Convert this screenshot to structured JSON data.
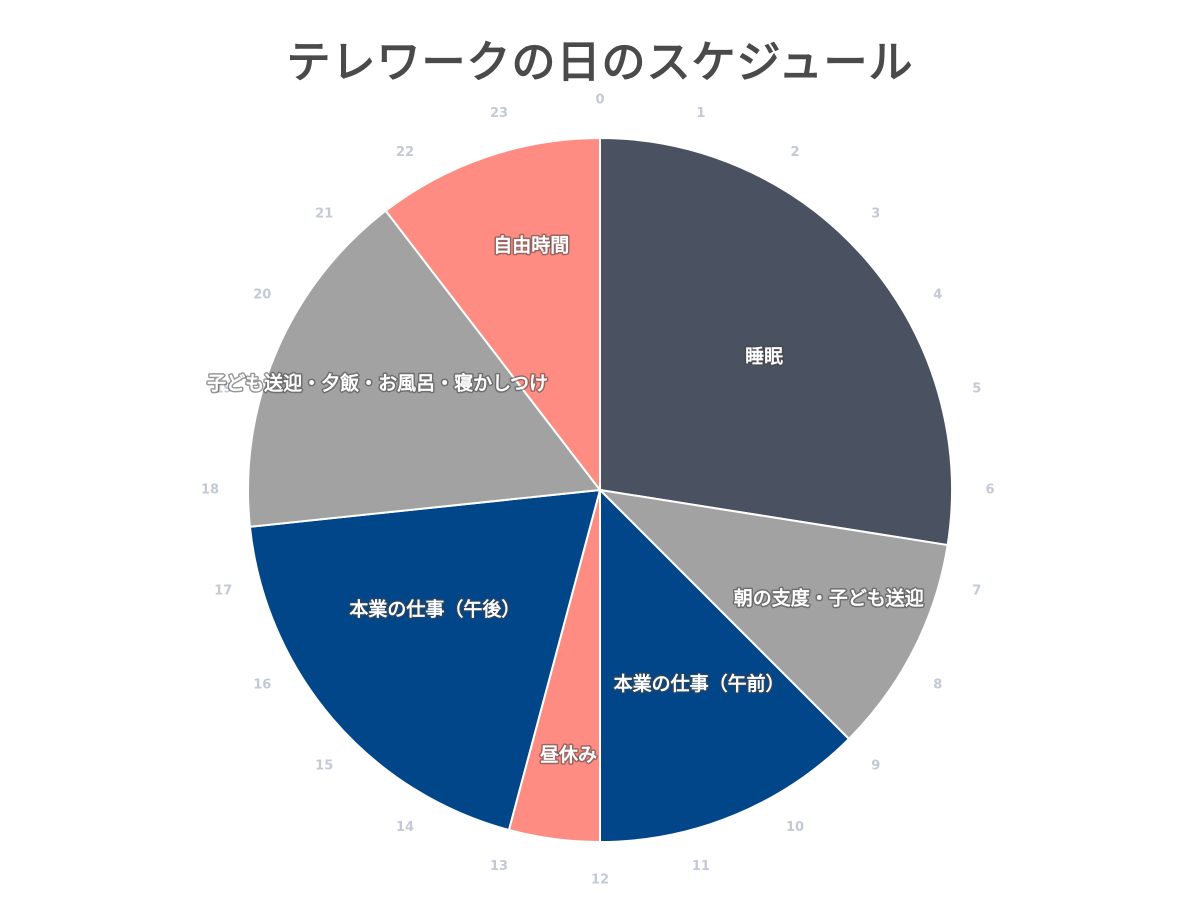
{
  "chart_data": {
    "type": "pie",
    "title": "テレワークの日のスケジュール",
    "start_angle_hour": 0,
    "total_hours": 24,
    "hour_ticks": [
      "0",
      "1",
      "2",
      "3",
      "4",
      "5",
      "6",
      "7",
      "8",
      "9",
      "10",
      "11",
      "12",
      "13",
      "14",
      "15",
      "16",
      "17",
      "18",
      "19",
      "20",
      "21",
      "22",
      "23"
    ],
    "slices": [
      {
        "label": "睡眠",
        "start": 0,
        "end": 6.6,
        "value": 6.6,
        "color": "#4a5160"
      },
      {
        "label": "朝の支度・子ども送迎",
        "start": 6.6,
        "end": 9.0,
        "value": 2.4,
        "color": "#a2a2a2"
      },
      {
        "label": "本業の仕事（午前）",
        "start": 9.0,
        "end": 12.0,
        "value": 3.0,
        "color": "#02468a"
      },
      {
        "label": "昼休み",
        "start": 12.0,
        "end": 13.0,
        "value": 1.0,
        "color": "#ff8c83"
      },
      {
        "label": "本業の仕事（午後）",
        "start": 13.0,
        "end": 17.6,
        "value": 4.6,
        "color": "#02468a"
      },
      {
        "label": "子ども送迎・夕飯・お風呂・寝かしつけ",
        "start": 17.6,
        "end": 21.5,
        "value": 3.9,
        "color": "#a2a2a2"
      },
      {
        "label": "自由時間",
        "start": 21.5,
        "end": 24.0,
        "value": 2.5,
        "color": "#ff8c83"
      }
    ]
  }
}
